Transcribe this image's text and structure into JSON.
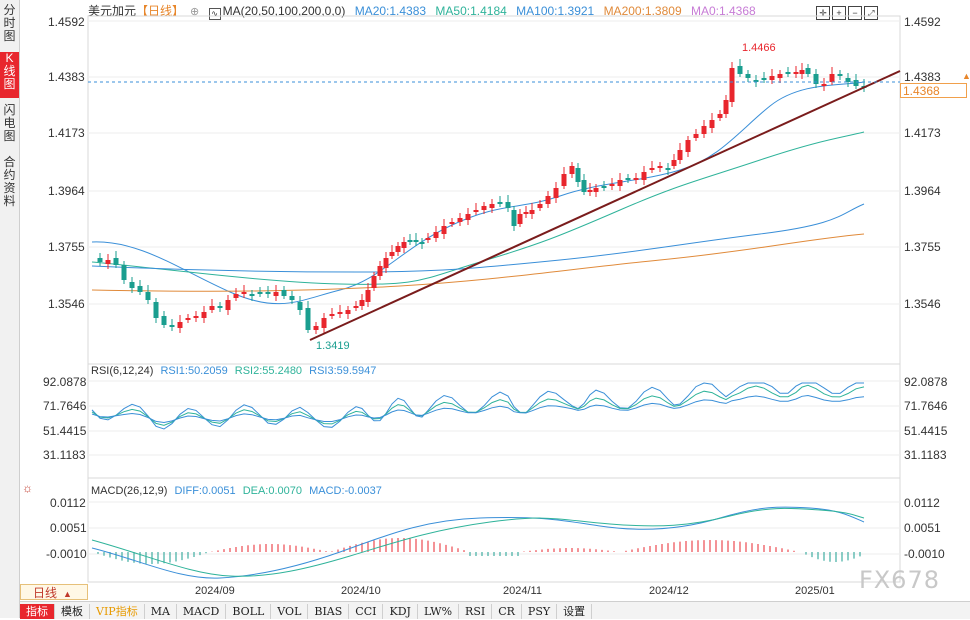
{
  "sidebar": {
    "tabs": [
      {
        "label": "分时图"
      },
      {
        "label": "K线图"
      },
      {
        "label": "闪电图"
      },
      {
        "label": "合约资料"
      }
    ]
  },
  "header": {
    "symbol": "美元加元",
    "period_tag": "【日线】",
    "ma_label": "MA(20,50,100,200,0,0)",
    "ma20": "MA20:1.4383",
    "ma50": "MA50:1.4184",
    "ma100": "MA100:1.3921",
    "ma200": "MA200:1.3809",
    "ma0": "MA0:1.4368"
  },
  "price_axis": {
    "labels": [
      "1.4592",
      "1.4383",
      "1.4173",
      "1.3964",
      "1.3755",
      "1.3546"
    ],
    "current_price": "1.4368",
    "high_label": "1.4466",
    "low_label": "1.3419"
  },
  "rsi": {
    "title": "RSI(6,12,24)",
    "rsi1": "RSI1:50.2059",
    "rsi2": "RSI2:55.2480",
    "rsi3": "RSI3:59.5947",
    "labels": [
      "92.0878",
      "71.7646",
      "51.4415",
      "31.1183"
    ]
  },
  "macd": {
    "title": "MACD(26,12,9)",
    "diff": "DIFF:0.0051",
    "dea": "DEA:0.0070",
    "macd": "MACD:-0.0037",
    "labels": [
      "0.0112",
      "0.0051",
      "-0.0010"
    ]
  },
  "x_axis": {
    "labels": [
      "2024/09",
      "2024/10",
      "2024/11",
      "2024/12",
      "2025/01"
    ]
  },
  "period_selector": {
    "label": "日线"
  },
  "bottom_tabs": [
    "指标",
    "模板",
    "VIP指标",
    "MA",
    "MACD",
    "BOLL",
    "VOL",
    "BIAS",
    "CCI",
    "KDJ",
    "LW%",
    "RSI",
    "CR",
    "PSY",
    "设置"
  ],
  "watermark": "FX678",
  "colors": {
    "up": "#e8262d",
    "down": "#1a9e8f",
    "ma20": "#3a8fd8",
    "ma50": "#2fb39a",
    "ma100": "#3a8fd8",
    "ma200": "#e08a3a",
    "trendline": "#7a1c1c",
    "rsi1": "#3a8fd8",
    "rsi2": "#2fb39a"
  }
}
